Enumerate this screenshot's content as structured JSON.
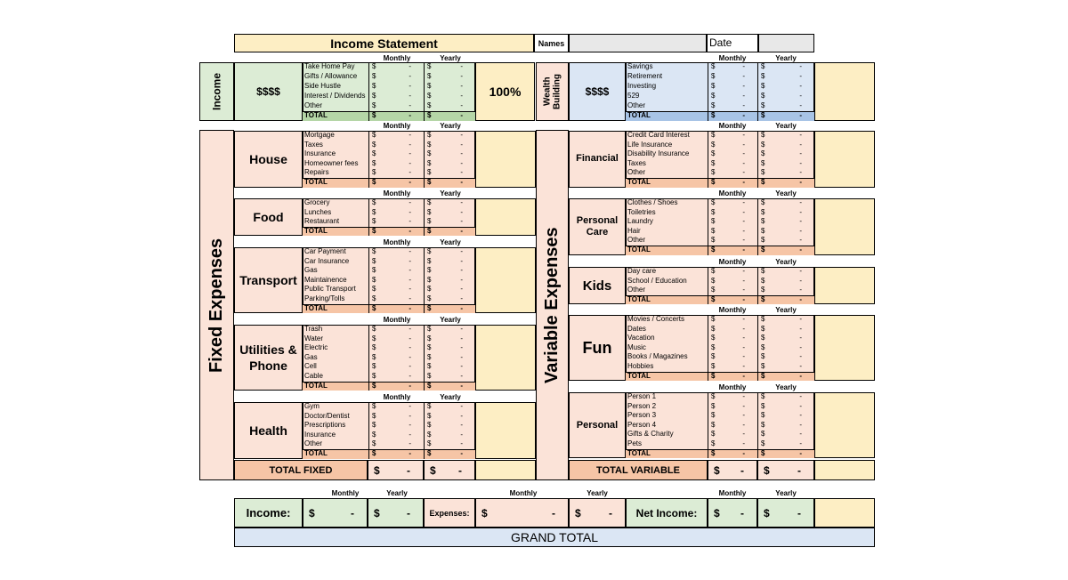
{
  "colors": {
    "yellow": "#fdeec4",
    "green": "#dcecd5",
    "blue": "#dbe6f4",
    "peach": "#fbe3d8",
    "orange": "#f6c5a6",
    "gray": "#e8e8e8"
  },
  "header": {
    "title": "Income Statement",
    "names_label": "Names",
    "names_value": "",
    "date_label": "Date",
    "date_value": ""
  },
  "col_headers": {
    "monthly": "Monthly",
    "yearly": "Yearly"
  },
  "money": {
    "dollar": "$",
    "dash": "-"
  },
  "income": {
    "label": "Income",
    "amount_label": "$$$$",
    "percent": "100%",
    "items": [
      "Take Home Pay",
      "Gifts / Allowance",
      "Side Hustle",
      "Interest / Dividends",
      "Other",
      "TOTAL"
    ]
  },
  "wealth": {
    "label": "Wealth Building",
    "amount_label": "$$$$",
    "items": [
      "Savings",
      "Retirement",
      "Investing",
      "529",
      "Other",
      "TOTAL"
    ]
  },
  "fixed": {
    "label": "Fixed Expenses",
    "sections": [
      {
        "name": "House",
        "items": [
          "Mortgage",
          "Taxes",
          "Insurance",
          "Homeowner fees",
          "Repairs",
          "TOTAL"
        ]
      },
      {
        "name": "Food",
        "items": [
          "Grocery",
          "Lunches",
          "Restaurant",
          "TOTAL"
        ]
      },
      {
        "name": "Transport",
        "items": [
          "Car Payment",
          "Car Insurance",
          "Gas",
          "Maintainence",
          "Public Transport",
          "Parking/Tolls",
          "TOTAL"
        ]
      },
      {
        "name": "Utilities & Phone",
        "items": [
          "Trash",
          "Water",
          "Electric",
          "Gas",
          "Cell",
          "Cable",
          "TOTAL"
        ]
      },
      {
        "name": "Health",
        "items": [
          "Gym",
          "Doctor/Dentist",
          "Prescriptions",
          "Insurance",
          "Other",
          "TOTAL"
        ]
      }
    ],
    "total_label": "TOTAL FIXED"
  },
  "variable": {
    "label": "Variable Expenses",
    "sections": [
      {
        "name": "Financial",
        "items": [
          "Credit Card Interest",
          "Life Insurance",
          "Disability Insurance",
          "Taxes",
          "Other",
          "TOTAL"
        ]
      },
      {
        "name": "Personal Care",
        "items": [
          "Clothes / Shoes",
          "Toiletries",
          "Laundry",
          "Hair",
          "Other",
          "TOTAL"
        ]
      },
      {
        "name": "Kids",
        "items": [
          "Day care",
          "School / Education",
          "Other",
          "TOTAL"
        ]
      },
      {
        "name": "Fun",
        "items": [
          "Movies / Concerts",
          "Dates",
          "Vacation",
          "Music",
          "Books / Magazines",
          "Hobbies",
          "TOTAL"
        ]
      },
      {
        "name": "Personal",
        "items": [
          "Person 1",
          "Person 2",
          "Person 3",
          "Person 4",
          "Gifts & Charity",
          "Pets",
          "TOTAL"
        ]
      }
    ],
    "total_label": "TOTAL VARIABLE"
  },
  "summary": {
    "income_label": "Income:",
    "expenses_label": "Expenses:",
    "net_label": "Net Income:",
    "grand_total": "GRAND TOTAL"
  }
}
